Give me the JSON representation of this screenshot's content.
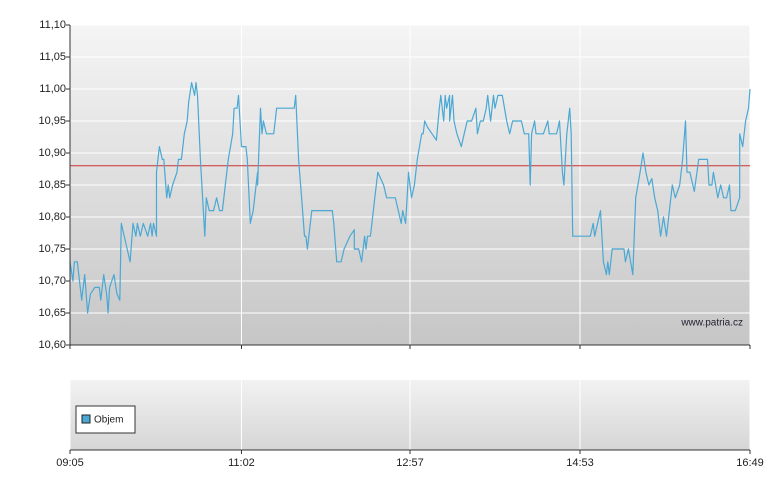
{
  "chart_data": {
    "type": "line",
    "watermark": "www.patria.cz",
    "volume_legend": "Objem",
    "reference_line": 10.88,
    "reference_color": "#cc3333",
    "grid": true,
    "xlim": [
      545,
      1009
    ],
    "xticks": [
      {
        "value": 545,
        "label": "09:05"
      },
      {
        "value": 662,
        "label": "11:02"
      },
      {
        "value": 777,
        "label": "12:57"
      },
      {
        "value": 893,
        "label": "14:53"
      },
      {
        "value": 1009,
        "label": "16:49"
      }
    ],
    "ylim": [
      10.6,
      11.1
    ],
    "yticks": [
      {
        "value": 10.6,
        "label": "10,60"
      },
      {
        "value": 10.65,
        "label": "10,65"
      },
      {
        "value": 10.7,
        "label": "10,70"
      },
      {
        "value": 10.75,
        "label": "10,75"
      },
      {
        "value": 10.8,
        "label": "10,80"
      },
      {
        "value": 10.85,
        "label": "10,85"
      },
      {
        "value": 10.9,
        "label": "10,90"
      },
      {
        "value": 10.95,
        "label": "10,95"
      },
      {
        "value": 11.0,
        "label": "11,00"
      },
      {
        "value": 11.05,
        "label": "11,05"
      },
      {
        "value": 11.1,
        "label": "11,10"
      }
    ],
    "series": [
      {
        "color": "#4aa8d4",
        "x": [
          545,
          547,
          548,
          550,
          553,
          555,
          557,
          559,
          562,
          565,
          566,
          568,
          570,
          571,
          572,
          575,
          577,
          579,
          580,
          583,
          586,
          588,
          590,
          591,
          593,
          595,
          598,
          600,
          601,
          602,
          604,
          604,
          606,
          608,
          609,
          611,
          612,
          613,
          615,
          618,
          619,
          621,
          623,
          625,
          626,
          628,
          630,
          631,
          632,
          634,
          637,
          638,
          640,
          643,
          645,
          647,
          649,
          651,
          653,
          656,
          657,
          659,
          660,
          662,
          664,
          665,
          666,
          668,
          670,
          672,
          673,
          673,
          675,
          676,
          677,
          679,
          681,
          684,
          685,
          686,
          690,
          694,
          698,
          699,
          701,
          703,
          705,
          706,
          707,
          709,
          710,
          714,
          720,
          724,
          725,
          727,
          730,
          732,
          736,
          739,
          739,
          742,
          744,
          746,
          747,
          748,
          750,
          751,
          753,
          755,
          757,
          759,
          761,
          763,
          767,
          769,
          771,
          772,
          774,
          775,
          776,
          778,
          780,
          782,
          785,
          786,
          787,
          789,
          792,
          795,
          797,
          798,
          800,
          801,
          802,
          804,
          804,
          806,
          807,
          809,
          812,
          814,
          816,
          819,
          822,
          823,
          825,
          827,
          829,
          830,
          832,
          834,
          835,
          837,
          840,
          843,
          845,
          847,
          850,
          853,
          855,
          858,
          859,
          860,
          862,
          863,
          866,
          868,
          871,
          872,
          875,
          877,
          879,
          881,
          882,
          884,
          886,
          887,
          888,
          893,
          900,
          902,
          903,
          905,
          907,
          909,
          911,
          912,
          913,
          915,
          920,
          923,
          924,
          926,
          929,
          931,
          934,
          936,
          938,
          940,
          942,
          944,
          946,
          948,
          950,
          952,
          954,
          956,
          958,
          961,
          963,
          965,
          966,
          968,
          970,
          971,
          974,
          980,
          981,
          983,
          984,
          987,
          989,
          991,
          993,
          995,
          996,
          999,
          1002,
          1002,
          1004,
          1006,
          1008,
          1009
        ],
        "values": [
          10.73,
          10.7,
          10.73,
          10.73,
          10.67,
          10.71,
          10.65,
          10.68,
          10.69,
          10.69,
          10.67,
          10.71,
          10.68,
          10.65,
          10.69,
          10.71,
          10.68,
          10.67,
          10.79,
          10.76,
          10.73,
          10.79,
          10.77,
          10.79,
          10.77,
          10.79,
          10.77,
          10.79,
          10.77,
          10.79,
          10.77,
          10.87,
          10.91,
          10.89,
          10.89,
          10.83,
          10.85,
          10.83,
          10.85,
          10.87,
          10.89,
          10.89,
          10.93,
          10.95,
          10.98,
          11.01,
          10.99,
          11.01,
          10.99,
          10.89,
          10.77,
          10.83,
          10.81,
          10.81,
          10.83,
          10.81,
          10.81,
          10.85,
          10.89,
          10.93,
          10.97,
          10.97,
          10.99,
          10.91,
          10.91,
          10.91,
          10.89,
          10.79,
          10.81,
          10.85,
          10.87,
          10.85,
          10.97,
          10.93,
          10.95,
          10.93,
          10.93,
          10.93,
          10.95,
          10.97,
          10.97,
          10.97,
          10.97,
          10.99,
          10.89,
          10.83,
          10.77,
          10.77,
          10.75,
          10.79,
          10.81,
          10.81,
          10.81,
          10.81,
          10.79,
          10.73,
          10.73,
          10.75,
          10.77,
          10.78,
          10.75,
          10.75,
          10.73,
          10.77,
          10.75,
          10.77,
          10.77,
          10.79,
          10.83,
          10.87,
          10.86,
          10.85,
          10.83,
          10.83,
          10.83,
          10.81,
          10.79,
          10.81,
          10.79,
          10.83,
          10.87,
          10.83,
          10.85,
          10.89,
          10.93,
          10.93,
          10.95,
          10.94,
          10.93,
          10.92,
          10.97,
          10.99,
          10.95,
          10.99,
          10.97,
          10.99,
          10.95,
          10.99,
          10.95,
          10.93,
          10.91,
          10.93,
          10.95,
          10.95,
          10.97,
          10.93,
          10.95,
          10.95,
          10.97,
          10.99,
          10.95,
          10.99,
          10.97,
          10.99,
          10.99,
          10.95,
          10.93,
          10.95,
          10.95,
          10.95,
          10.93,
          10.93,
          10.85,
          10.93,
          10.95,
          10.93,
          10.93,
          10.93,
          10.95,
          10.93,
          10.93,
          10.93,
          10.95,
          10.87,
          10.85,
          10.93,
          10.97,
          10.93,
          10.77,
          10.77,
          10.77,
          10.79,
          10.77,
          10.79,
          10.81,
          10.73,
          10.71,
          10.73,
          10.71,
          10.75,
          10.75,
          10.75,
          10.73,
          10.75,
          10.71,
          10.83,
          10.87,
          10.9,
          10.87,
          10.85,
          10.86,
          10.83,
          10.81,
          10.77,
          10.8,
          10.77,
          10.81,
          10.85,
          10.83,
          10.85,
          10.89,
          10.95,
          10.87,
          10.87,
          10.85,
          10.84,
          10.89,
          10.89,
          10.85,
          10.85,
          10.87,
          10.83,
          10.85,
          10.83,
          10.83,
          10.85,
          10.81,
          10.81,
          10.83,
          10.93,
          10.91,
          10.95,
          10.97,
          11.0
        ]
      }
    ]
  }
}
